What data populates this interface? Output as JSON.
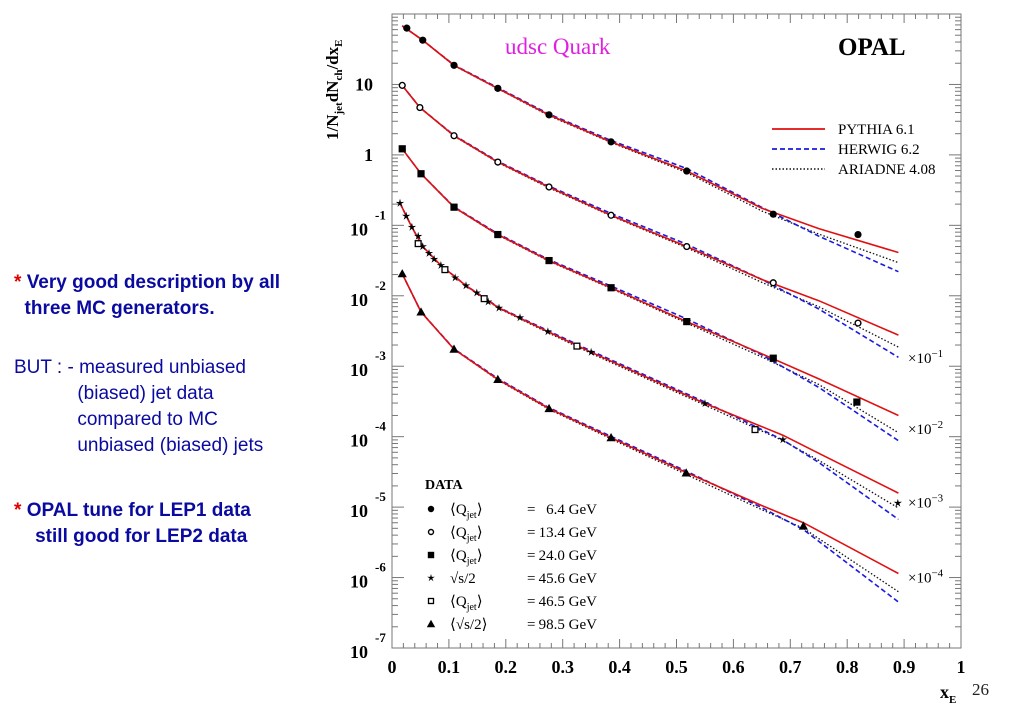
{
  "slide": {
    "page_number": "26",
    "notes": [
      {
        "bullet": "*",
        "text": "Very good description by all\n  three MC generators.",
        "bold": true
      },
      {
        "bullet": "",
        "text": "BUT : - measured unbiased\n            (biased) jet data\n            compared to MC\n            unbiased (biased) jets",
        "bold": false
      },
      {
        "bullet": "*",
        "text": "OPAL tune for LEP1 data\n    still good for LEP2 data",
        "bold": true
      }
    ],
    "colors": {
      "note_text": "#0a0aa0",
      "bullet": "#e00000",
      "title_magenta": "#e020e0"
    }
  },
  "chart_data": {
    "type": "scatter",
    "title": "udsc Quark",
    "experiment_label": "OPAL",
    "xlabel": "x_E",
    "ylabel": "1/N_jet dN_ch/dx_E",
    "xlim": [
      0,
      1
    ],
    "ylim": [
      1e-07,
      100
    ],
    "yscale": "log",
    "x_ticks": [
      "0",
      "0.1",
      "0.2",
      "0.3",
      "0.4",
      "0.5",
      "0.6",
      "0.7",
      "0.8",
      "0.9",
      "1"
    ],
    "x_tick_values": [
      0,
      0.1,
      0.2,
      0.3,
      0.4,
      0.5,
      0.6,
      0.7,
      0.8,
      0.9,
      1
    ],
    "y_ticks": [
      {
        "value": 10,
        "base": "10",
        "exp": ""
      },
      {
        "value": 1,
        "base": "1",
        "exp": ""
      },
      {
        "value": 0.1,
        "base": "10",
        "exp": "-1"
      },
      {
        "value": 0.01,
        "base": "10",
        "exp": "-2"
      },
      {
        "value": 0.001,
        "base": "10",
        "exp": "-3"
      },
      {
        "value": 0.0001,
        "base": "10",
        "exp": "-4"
      },
      {
        "value": 1e-05,
        "base": "10",
        "exp": "-5"
      },
      {
        "value": 1e-06,
        "base": "10",
        "exp": "-6"
      },
      {
        "value": 1e-07,
        "base": "10",
        "exp": "-7"
      }
    ],
    "mc_legend": {
      "placement": "top-right",
      "entries": [
        {
          "name": "PYTHIA 6.1",
          "color": "#e01010",
          "style": "solid"
        },
        {
          "name": "HERWIG 6.2",
          "color": "#1a1ae0",
          "style": "dashed"
        },
        {
          "name": "ARIADNE 4.08",
          "color": "#111111",
          "style": "dotted"
        }
      ]
    },
    "data_legend": {
      "title": "DATA",
      "placement": "bottom-left",
      "entries": [
        {
          "marker": "circle-filled",
          "label": "⟨Q_jet⟩ = 6.4 GeV",
          "lhs": "⟨Q",
          "sub": "jet",
          "rhs": "⟩",
          "value": "6.4 GeV"
        },
        {
          "marker": "circle-open",
          "label": "⟨Q_jet⟩ = 13.4 GeV",
          "lhs": "⟨Q",
          "sub": "jet",
          "rhs": "⟩",
          "value": "13.4 GeV"
        },
        {
          "marker": "square-filled",
          "label": "⟨Q_jet⟩ = 24.0 GeV",
          "lhs": "⟨Q",
          "sub": "jet",
          "rhs": "⟩",
          "value": "24.0 GeV"
        },
        {
          "marker": "star",
          "label": "√s/2 = 45.6 GeV",
          "lhs": "√s/2",
          "sub": "",
          "rhs": "",
          "value": "45.6 GeV"
        },
        {
          "marker": "square-open",
          "label": "⟨Q_jet⟩ = 46.5 GeV",
          "lhs": "⟨Q",
          "sub": "jet",
          "rhs": "⟩",
          "value": "46.5 GeV"
        },
        {
          "marker": "triangle-filled",
          "label": "⟨√s/2⟩ = 98.5 GeV",
          "lhs": "⟨√s/2⟩",
          "sub": "",
          "rhs": "",
          "value": "98.5 GeV"
        }
      ]
    },
    "scale_annotations": [
      {
        "series_group": 2,
        "text": "×10",
        "exp": "−1",
        "y_value": 0.0013
      },
      {
        "series_group": 3,
        "text": "×10",
        "exp": "−2",
        "y_value": 0.000128
      },
      {
        "series_group": 4,
        "text": "×10",
        "exp": "−3",
        "y_value": 1.16e-05
      },
      {
        "series_group": 5,
        "text": "×10",
        "exp": "−4",
        "y_value": 1.01e-06
      }
    ],
    "data_series": [
      {
        "name": "Q_jet = 6.4 GeV",
        "marker": "circle-filled",
        "x": [
          0.026,
          0.054,
          0.109,
          0.186,
          0.276,
          0.385,
          0.518,
          0.67,
          0.819
        ],
        "y": [
          63,
          42.5,
          18.7,
          8.8,
          3.7,
          1.53,
          0.59,
          0.144,
          0.074
        ]
      },
      {
        "name": "Q_jet = 13.4 GeV",
        "marker": "circle-open",
        "x": [
          0.018,
          0.049,
          0.109,
          0.186,
          0.276,
          0.385,
          0.518,
          0.67,
          0.819
        ],
        "y": [
          9.7,
          4.7,
          1.87,
          0.79,
          0.35,
          0.139,
          0.05,
          0.0153,
          0.0041
        ]
      },
      {
        "name": "Q_jet = 24.0 GeV",
        "marker": "square-filled",
        "x": [
          0.018,
          0.051,
          0.109,
          0.186,
          0.276,
          0.385,
          0.518,
          0.67,
          0.817
        ],
        "y": [
          1.22,
          0.54,
          0.181,
          0.074,
          0.0316,
          0.013,
          0.0043,
          0.0013,
          0.00031
        ]
      },
      {
        "name": "sqrt(s)/2 = 45.6 GeV",
        "marker": "star",
        "x": [
          0.014,
          0.025,
          0.035,
          0.046,
          0.054,
          0.065,
          0.074,
          0.086,
          0.111,
          0.13,
          0.149,
          0.169,
          0.188,
          0.225,
          0.274,
          0.35,
          0.55,
          0.687,
          0.889
        ],
        "y": [
          0.206,
          0.135,
          0.094,
          0.07,
          0.05,
          0.04,
          0.033,
          0.027,
          0.018,
          0.0139,
          0.011,
          0.0082,
          0.0067,
          0.0049,
          0.0031,
          0.00158,
          0.000296,
          9.06e-05,
          1.14e-05
        ]
      },
      {
        "name": "Q_jet = 46.5 GeV",
        "marker": "square-open",
        "x": [
          0.046,
          0.093,
          0.162,
          0.325,
          0.638
        ],
        "y": [
          0.055,
          0.0235,
          0.0091,
          0.00193,
          0.000126
        ]
      },
      {
        "name": "sqrt(s)/2 = 98.5 GeV",
        "marker": "triangle-filled",
        "x": [
          0.018,
          0.051,
          0.109,
          0.186,
          0.276,
          0.385,
          0.517,
          0.723
        ],
        "y": [
          0.0206,
          0.0059,
          0.00175,
          0.00065,
          0.000251,
          9.68e-05,
          3.06e-05,
          5.4e-06
        ]
      }
    ],
    "mc_curves": [
      {
        "group": 1,
        "x": [
          0.018,
          0.054,
          0.109,
          0.186,
          0.276,
          0.385,
          0.518,
          0.65,
          0.75,
          0.89
        ],
        "PYTHIA": [
          68,
          42.5,
          18.7,
          8.8,
          3.7,
          1.53,
          0.59,
          0.175,
          0.09,
          0.0411
        ],
        "HERWIG": [
          68,
          42.5,
          18.9,
          9.0,
          3.8,
          1.6,
          0.64,
          0.18,
          0.07,
          0.022
        ],
        "ARIADNE": [
          68,
          42.5,
          18.5,
          8.7,
          3.6,
          1.5,
          0.56,
          0.16,
          0.075,
          0.0296
        ]
      },
      {
        "group": 2,
        "x": [
          0.018,
          0.049,
          0.109,
          0.186,
          0.276,
          0.385,
          0.518,
          0.65,
          0.75,
          0.89
        ],
        "PYTHIA": [
          9.7,
          4.7,
          1.87,
          0.79,
          0.35,
          0.139,
          0.05,
          0.017,
          0.0085,
          0.00277
        ],
        "HERWIG": [
          9.7,
          4.7,
          1.9,
          0.81,
          0.36,
          0.147,
          0.054,
          0.017,
          0.0065,
          0.00134
        ],
        "ARIADNE": [
          9.7,
          4.7,
          1.85,
          0.78,
          0.34,
          0.136,
          0.048,
          0.0155,
          0.007,
          0.00187
        ]
      },
      {
        "group": 3,
        "x": [
          0.018,
          0.051,
          0.109,
          0.186,
          0.276,
          0.385,
          0.518,
          0.65,
          0.75,
          0.89
        ],
        "PYTHIA": [
          1.22,
          0.54,
          0.181,
          0.074,
          0.0316,
          0.013,
          0.0043,
          0.0015,
          0.00066,
          0.0002
        ],
        "HERWIG": [
          1.22,
          0.54,
          0.183,
          0.076,
          0.0325,
          0.0137,
          0.0047,
          0.00145,
          0.0005,
          8.77e-05
        ],
        "ARIADNE": [
          1.22,
          0.54,
          0.18,
          0.073,
          0.031,
          0.0127,
          0.0041,
          0.00135,
          0.00055,
          0.000114
        ]
      },
      {
        "group": 4,
        "x": [
          0.014,
          0.035,
          0.054,
          0.086,
          0.13,
          0.188,
          0.274,
          0.35,
          0.55,
          0.687,
          0.75,
          0.89
        ],
        "PYTHIA": [
          0.206,
          0.094,
          0.05,
          0.027,
          0.0139,
          0.0067,
          0.0031,
          0.00158,
          0.000296,
          0.000105,
          5.8e-05,
          1.58e-05
        ],
        "HERWIG": [
          0.206,
          0.094,
          0.05,
          0.027,
          0.014,
          0.0068,
          0.0032,
          0.00165,
          0.00031,
          9e-05,
          4.3e-05,
          6.7e-06
        ],
        "ARIADNE": [
          0.206,
          0.094,
          0.05,
          0.027,
          0.0138,
          0.0066,
          0.003,
          0.00152,
          0.00028,
          8.8e-05,
          4.6e-05,
          9.7e-06
        ]
      },
      {
        "group": 5,
        "x": [
          0.018,
          0.051,
          0.109,
          0.186,
          0.276,
          0.385,
          0.517,
          0.65,
          0.723,
          0.89
        ],
        "PYTHIA": [
          0.0206,
          0.0059,
          0.00175,
          0.00065,
          0.000251,
          9.68e-05,
          3.1e-05,
          1.05e-05,
          6e-06,
          1.14e-06
        ],
        "HERWIG": [
          0.0206,
          0.0059,
          0.00177,
          0.00067,
          0.000258,
          0.000101,
          3.25e-05,
          9.8e-06,
          4.8e-06,
          4.5e-07
        ],
        "ARIADNE": [
          0.0206,
          0.0059,
          0.00174,
          0.00064,
          0.000245,
          9.3e-05,
          2.9e-05,
          9.2e-06,
          5e-06,
          6.3e-07
        ]
      }
    ]
  }
}
